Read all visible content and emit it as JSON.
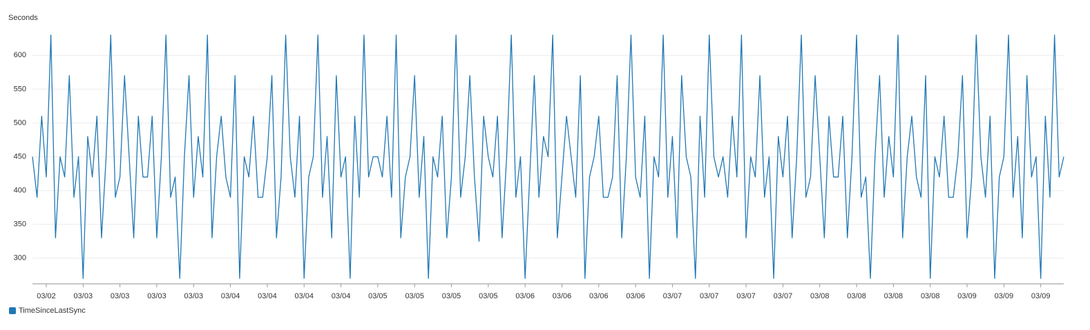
{
  "chart_data": {
    "type": "line",
    "y_label": "Seconds",
    "categories": [
      null,
      null,
      null,
      "03/02",
      null,
      null,
      null,
      null,
      null,
      null,
      null,
      "03/03",
      null,
      null,
      null,
      null,
      null,
      null,
      null,
      "03/03",
      null,
      null,
      null,
      null,
      null,
      null,
      null,
      "03/03",
      null,
      null,
      null,
      null,
      null,
      null,
      null,
      "03/03",
      null,
      null,
      null,
      null,
      null,
      null,
      null,
      "03/04",
      null,
      null,
      null,
      null,
      null,
      null,
      null,
      "03/04",
      null,
      null,
      null,
      null,
      null,
      null,
      null,
      "03/04",
      null,
      null,
      null,
      null,
      null,
      null,
      null,
      "03/04",
      null,
      null,
      null,
      null,
      null,
      null,
      null,
      "03/05",
      null,
      null,
      null,
      null,
      null,
      null,
      null,
      "03/05",
      null,
      null,
      null,
      null,
      null,
      null,
      null,
      "03/05",
      null,
      null,
      null,
      null,
      null,
      null,
      null,
      "03/05",
      null,
      null,
      null,
      null,
      null,
      null,
      null,
      "03/06",
      null,
      null,
      null,
      null,
      null,
      null,
      null,
      "03/06",
      null,
      null,
      null,
      null,
      null,
      null,
      null,
      "03/06",
      null,
      null,
      null,
      null,
      null,
      null,
      null,
      "03/06",
      null,
      null,
      null,
      null,
      null,
      null,
      null,
      "03/07",
      null,
      null,
      null,
      null,
      null,
      null,
      null,
      "03/07",
      null,
      null,
      null,
      null,
      null,
      null,
      null,
      "03/07",
      null,
      null,
      null,
      null,
      null,
      null,
      null,
      "03/07",
      null,
      null,
      null,
      null,
      null,
      null,
      null,
      "03/08",
      null,
      null,
      null,
      null,
      null,
      null,
      null,
      "03/08",
      null,
      null,
      null,
      null,
      null,
      null,
      null,
      "03/08",
      null,
      null,
      null,
      null,
      null,
      null,
      null,
      "03/08",
      null,
      null,
      null,
      null,
      null,
      null,
      null,
      "03/09",
      null,
      null,
      null,
      null,
      null,
      null,
      null,
      "03/09",
      null,
      null,
      null,
      null,
      null,
      null,
      null,
      "03/09",
      null,
      null,
      null,
      null,
      null
    ],
    "series": [
      {
        "name": "TimeSinceLastSync",
        "color": "#1f77b4",
        "values": [
          450,
          390,
          510,
          420,
          630,
          330,
          450,
          420,
          570,
          390,
          450,
          270,
          480,
          420,
          510,
          330,
          450,
          630,
          390,
          420,
          570,
          450,
          330,
          510,
          420,
          420,
          510,
          330,
          450,
          630,
          390,
          420,
          270,
          450,
          570,
          390,
          480,
          420,
          630,
          330,
          450,
          510,
          420,
          390,
          570,
          270,
          450,
          420,
          510,
          390,
          390,
          450,
          570,
          330,
          420,
          630,
          450,
          390,
          510,
          270,
          420,
          450,
          630,
          390,
          480,
          330,
          570,
          420,
          450,
          270,
          510,
          390,
          630,
          420,
          450,
          450,
          420,
          510,
          390,
          630,
          330,
          420,
          450,
          570,
          390,
          480,
          270,
          450,
          420,
          510,
          330,
          420,
          630,
          390,
          450,
          570,
          420,
          325,
          510,
          450,
          420,
          510,
          330,
          450,
          630,
          390,
          450,
          270,
          420,
          570,
          390,
          480,
          450,
          630,
          330,
          420,
          510,
          450,
          390,
          570,
          270,
          420,
          450,
          510,
          390,
          390,
          420,
          570,
          330,
          450,
          630,
          420,
          390,
          510,
          270,
          450,
          420,
          630,
          390,
          480,
          330,
          570,
          450,
          420,
          270,
          510,
          390,
          630,
          450,
          420,
          450,
          390,
          510,
          420,
          630,
          330,
          450,
          420,
          570,
          390,
          450,
          270,
          480,
          420,
          510,
          330,
          450,
          630,
          390,
          420,
          570,
          450,
          330,
          510,
          420,
          420,
          510,
          330,
          450,
          630,
          390,
          420,
          270,
          450,
          570,
          390,
          480,
          420,
          630,
          330,
          450,
          510,
          420,
          390,
          570,
          270,
          450,
          420,
          510,
          390,
          390,
          450,
          570,
          330,
          420,
          630,
          450,
          390,
          510,
          270,
          420,
          450,
          630,
          390,
          480,
          330,
          570,
          420,
          450,
          270,
          510,
          390,
          630,
          420,
          450
        ]
      }
    ],
    "ylim": [
      262,
      636
    ],
    "yticks": [
      300,
      350,
      400,
      450,
      500,
      550,
      600
    ],
    "grid": true
  }
}
